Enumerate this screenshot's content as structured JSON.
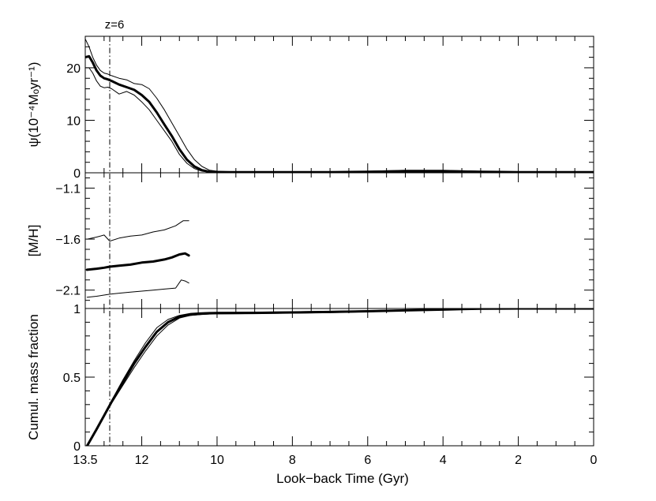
{
  "chart_data": {
    "type": "line",
    "x_axis": {
      "label": "Look−back Time (Gyr)",
      "range": [
        13.5,
        0
      ],
      "ticks": [
        {
          "value": 13.5,
          "label": "13.5"
        },
        {
          "value": 12,
          "label": "12"
        },
        {
          "value": 10,
          "label": "10"
        },
        {
          "value": 8,
          "label": "8"
        },
        {
          "value": 6,
          "label": "6"
        },
        {
          "value": 4,
          "label": "4"
        },
        {
          "value": 2,
          "label": "2"
        },
        {
          "value": 0,
          "label": "0"
        }
      ],
      "minor_step": 0.5
    },
    "marker": {
      "x": 12.85,
      "label": "z=6",
      "style": "dash-dot"
    },
    "panels": [
      {
        "id": "sfr",
        "ylabel": "ψ(10⁻⁴Mₒyr⁻¹)",
        "ylim": [
          0,
          26
        ],
        "ticks": [
          {
            "value": 0,
            "label": "0"
          },
          {
            "value": 10,
            "label": "10"
          },
          {
            "value": 20,
            "label": "20"
          }
        ],
        "minor_step": 2,
        "series": [
          {
            "role": "upper",
            "x": [
              13.5,
              13.4,
              13.3,
              13.2,
              13.1,
              13.0,
              12.9,
              12.8,
              12.6,
              12.4,
              12.2,
              12.0,
              11.8,
              11.6,
              11.4,
              11.2,
              11.0,
              10.8,
              10.6,
              10.4,
              10.2,
              10.0,
              9.5,
              9.0,
              8.0,
              7.0,
              6.0,
              5.0,
              4.5,
              4.0,
              3.0,
              2.0,
              1.0,
              0.0
            ],
            "y": [
              25.5,
              24.0,
              22.0,
              20.5,
              19.5,
              19.0,
              18.8,
              18.5,
              18.0,
              17.7,
              17.0,
              16.8,
              16.0,
              14.2,
              12.0,
              9.5,
              7.0,
              4.5,
              2.5,
              1.2,
              0.5,
              0.3,
              0.2,
              0.2,
              0.2,
              0.2,
              0.3,
              0.5,
              0.5,
              0.5,
              0.3,
              0.2,
              0.2,
              0.2
            ]
          },
          {
            "role": "mean",
            "x": [
              13.5,
              13.4,
              13.3,
              13.2,
              13.1,
              13.0,
              12.9,
              12.8,
              12.6,
              12.4,
              12.2,
              12.0,
              11.8,
              11.6,
              11.4,
              11.2,
              11.0,
              10.8,
              10.6,
              10.4,
              10.2,
              10.0,
              9.5,
              9.0,
              8.0,
              7.0,
              6.0,
              5.0,
              4.5,
              4.0,
              3.0,
              2.0,
              1.0,
              0.0
            ],
            "y": [
              22.0,
              22.2,
              21.0,
              19.5,
              18.5,
              18.0,
              17.8,
              17.5,
              16.8,
              16.3,
              15.8,
              14.8,
              13.5,
              11.5,
              9.2,
              7.0,
              4.5,
              2.5,
              1.2,
              0.5,
              0.2,
              0.1,
              0.1,
              0.1,
              0.1,
              0.1,
              0.2,
              0.3,
              0.3,
              0.3,
              0.2,
              0.1,
              0.1,
              0.1
            ]
          },
          {
            "role": "lower",
            "x": [
              13.5,
              13.4,
              13.3,
              13.2,
              13.1,
              13.0,
              12.9,
              12.8,
              12.6,
              12.4,
              12.2,
              12.0,
              11.8,
              11.6,
              11.4,
              11.2,
              11.0,
              10.8,
              10.6,
              10.4,
              10.2,
              10.0,
              9.5,
              9.0,
              8.0,
              7.0,
              6.0,
              5.0,
              4.5,
              4.0,
              3.0,
              2.0,
              1.0,
              0.0
            ],
            "y": [
              20.0,
              20.0,
              19.0,
              17.5,
              16.5,
              16.2,
              16.3,
              16.0,
              15.0,
              15.5,
              14.8,
              13.5,
              12.0,
              10.0,
              8.0,
              6.0,
              3.5,
              1.8,
              0.8,
              0.3,
              0.1,
              0.0,
              0.0,
              0.0,
              0.0,
              0.0,
              0.0,
              0.0,
              0.0,
              0.0,
              0.0,
              0.0,
              0.0,
              0.0
            ]
          }
        ]
      },
      {
        "id": "metallicity",
        "ylabel": "[M/H]",
        "ylim": [
          -2.28,
          -0.95
        ],
        "ticks": [
          {
            "value": -2.1,
            "label": "−2.1"
          },
          {
            "value": -1.6,
            "label": "−1.6"
          },
          {
            "value": -1.1,
            "label": "−1.1"
          }
        ],
        "minor_step": 0.1,
        "series": [
          {
            "role": "upper",
            "x": [
              13.45,
              13.2,
              13.0,
              12.85,
              12.6,
              12.3,
              12.0,
              11.7,
              11.4,
              11.1,
              10.9,
              10.75
            ],
            "y": [
              -1.6,
              -1.58,
              -1.56,
              -1.62,
              -1.59,
              -1.57,
              -1.56,
              -1.53,
              -1.51,
              -1.47,
              -1.42,
              -1.42
            ]
          },
          {
            "role": "mean",
            "x": [
              13.45,
              13.2,
              13.0,
              12.85,
              12.6,
              12.3,
              12.0,
              11.7,
              11.4,
              11.2,
              11.0,
              10.85,
              10.75
            ],
            "y": [
              -1.9,
              -1.89,
              -1.88,
              -1.87,
              -1.86,
              -1.85,
              -1.83,
              -1.82,
              -1.8,
              -1.78,
              -1.75,
              -1.74,
              -1.76
            ]
          },
          {
            "role": "lower",
            "x": [
              13.45,
              13.2,
              12.85,
              12.6,
              12.3,
              12.0,
              11.7,
              11.4,
              11.1,
              10.95,
              10.85,
              10.75
            ],
            "y": [
              -2.17,
              -2.16,
              -2.14,
              -2.13,
              -2.12,
              -2.11,
              -2.1,
              -2.09,
              -2.08,
              -2.0,
              -2.01,
              -2.03
            ]
          }
        ]
      },
      {
        "id": "cumulative",
        "ylabel": "Cumul. mass fraction",
        "ylim": [
          0,
          1
        ],
        "ticks": [
          {
            "value": 0,
            "label": "0"
          },
          {
            "value": 0.5,
            "label": "0.5"
          },
          {
            "value": 1,
            "label": "1"
          }
        ],
        "minor_step": 0.1,
        "series": [
          {
            "role": "upper",
            "x": [
              13.45,
              13.2,
              13.0,
              12.8,
              12.5,
              12.2,
              11.9,
              11.6,
              11.3,
              11.0,
              10.7,
              10.4,
              10.2,
              10.0,
              9.5,
              9.0,
              8.0,
              7.0,
              6.0,
              5.0,
              4.0,
              3.5,
              3.0,
              2.0,
              1.0,
              0.0
            ],
            "y": [
              0.0,
              0.12,
              0.23,
              0.33,
              0.48,
              0.62,
              0.75,
              0.86,
              0.92,
              0.95,
              0.965,
              0.97,
              0.972,
              0.973,
              0.973,
              0.974,
              0.976,
              0.98,
              0.984,
              0.99,
              0.995,
              0.998,
              1.0,
              1.0,
              1.0,
              1.0
            ]
          },
          {
            "role": "mean",
            "x": [
              13.45,
              13.2,
              13.0,
              12.8,
              12.5,
              12.2,
              11.9,
              11.6,
              11.3,
              11.0,
              10.7,
              10.4,
              10.2,
              10.0,
              9.5,
              9.0,
              8.0,
              7.0,
              6.0,
              5.0,
              4.0,
              3.5,
              3.0,
              2.0,
              1.0,
              0.0
            ],
            "y": [
              0.0,
              0.12,
              0.22,
              0.32,
              0.46,
              0.6,
              0.72,
              0.83,
              0.9,
              0.94,
              0.955,
              0.962,
              0.965,
              0.966,
              0.967,
              0.968,
              0.971,
              0.975,
              0.98,
              0.986,
              0.992,
              0.996,
              0.998,
              1.0,
              1.0,
              1.0
            ]
          },
          {
            "role": "lower",
            "x": [
              13.45,
              13.2,
              13.0,
              12.8,
              12.5,
              12.2,
              11.9,
              11.6,
              11.3,
              11.0,
              10.7,
              10.4,
              10.2,
              10.0,
              9.5,
              9.0,
              8.0,
              7.0,
              6.0,
              5.0,
              4.0,
              3.5,
              3.0,
              2.0,
              1.0,
              0.0
            ],
            "y": [
              0.0,
              0.11,
              0.21,
              0.31,
              0.44,
              0.57,
              0.69,
              0.8,
              0.88,
              0.93,
              0.95,
              0.957,
              0.96,
              0.961,
              0.962,
              0.963,
              0.966,
              0.97,
              0.976,
              0.983,
              0.99,
              0.995,
              0.998,
              1.0,
              1.0,
              1.0
            ]
          }
        ]
      }
    ],
    "grid": false,
    "legend": "none"
  }
}
